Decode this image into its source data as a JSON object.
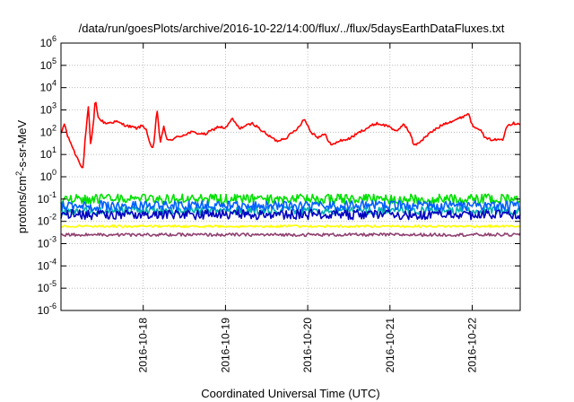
{
  "chart_data": {
    "type": "line",
    "title": "/data/run/goesPlots/archive/2016-10-22/14:00/flux/../flux/5daysEarthDataFluxes.txt",
    "xlabel": "Coordinated Universal Time (UTC)",
    "ylabel": {
      "main": "protons/cm",
      "sup": "2",
      "rest": "-s-sr-MeV"
    },
    "yscale": "log",
    "ylim_exp": [
      -6,
      6
    ],
    "y_tick_exponents": [
      -6,
      -5,
      -4,
      -3,
      -2,
      -1,
      0,
      1,
      2,
      3,
      4,
      5,
      6
    ],
    "xlim": [
      "2016-10-17 00:00",
      "2016-10-22 14:00"
    ],
    "x_ticks": [
      "2016-10-18",
      "2016-10-19",
      "2016-10-20",
      "2016-10-21",
      "2016-10-22"
    ],
    "grid": true,
    "legend": "none",
    "series": [
      {
        "color": "#ff0000",
        "noise": 0.06,
        "points": [
          [
            "2016-10-17 00:00",
            80
          ],
          [
            "2016-10-17 01:00",
            250
          ],
          [
            "2016-10-17 02:00",
            60
          ],
          [
            "2016-10-17 03:00",
            30
          ],
          [
            "2016-10-17 04:00",
            12
          ],
          [
            "2016-10-17 05:00",
            6
          ],
          [
            "2016-10-17 06:00",
            3
          ],
          [
            "2016-10-17 06:30",
            2.5
          ],
          [
            "2016-10-17 07:00",
            40
          ],
          [
            "2016-10-17 08:00",
            1500
          ],
          [
            "2016-10-17 08:40",
            20
          ],
          [
            "2016-10-17 09:30",
            300
          ],
          [
            "2016-10-17 10:00",
            3000
          ],
          [
            "2016-10-17 11:00",
            400
          ],
          [
            "2016-10-17 13:00",
            250
          ],
          [
            "2016-10-17 16:00",
            300
          ],
          [
            "2016-10-17 19:00",
            200
          ],
          [
            "2016-10-17 22:00",
            150
          ],
          [
            "2016-10-18 00:00",
            200
          ],
          [
            "2016-10-18 01:00",
            120
          ],
          [
            "2016-10-18 02:00",
            25
          ],
          [
            "2016-10-18 03:00",
            18
          ],
          [
            "2016-10-18 04:00",
            1200
          ],
          [
            "2016-10-18 05:00",
            30
          ],
          [
            "2016-10-18 06:00",
            200
          ],
          [
            "2016-10-18 07:00",
            40
          ],
          [
            "2016-10-18 10:00",
            60
          ],
          [
            "2016-10-18 14:00",
            100
          ],
          [
            "2016-10-18 18:00",
            80
          ],
          [
            "2016-10-18 22:00",
            180
          ],
          [
            "2016-10-19 00:00",
            150
          ],
          [
            "2016-10-19 02:00",
            400
          ],
          [
            "2016-10-19 04:00",
            150
          ],
          [
            "2016-10-19 08:00",
            250
          ],
          [
            "2016-10-19 12:00",
            80
          ],
          [
            "2016-10-19 15:00",
            40
          ],
          [
            "2016-10-19 18:00",
            60
          ],
          [
            "2016-10-19 21:00",
            150
          ],
          [
            "2016-10-19 23:00",
            400
          ],
          [
            "2016-10-20 01:00",
            100
          ],
          [
            "2016-10-20 03:00",
            60
          ],
          [
            "2016-10-20 05:00",
            80
          ],
          [
            "2016-10-20 07:00",
            25
          ],
          [
            "2016-10-20 09:00",
            40
          ],
          [
            "2016-10-20 12:00",
            50
          ],
          [
            "2016-10-20 16:00",
            120
          ],
          [
            "2016-10-20 20:00",
            250
          ],
          [
            "2016-10-21 00:00",
            180
          ],
          [
            "2016-10-21 02:00",
            100
          ],
          [
            "2016-10-21 04:00",
            250
          ],
          [
            "2016-10-21 06:00",
            80
          ],
          [
            "2016-10-21 07:00",
            25
          ],
          [
            "2016-10-21 09:00",
            40
          ],
          [
            "2016-10-21 12:00",
            100
          ],
          [
            "2016-10-21 16:00",
            250
          ],
          [
            "2016-10-21 20:00",
            400
          ],
          [
            "2016-10-21 23:00",
            700
          ],
          [
            "2016-10-22 00:00",
            200
          ],
          [
            "2016-10-22 02:00",
            150
          ],
          [
            "2016-10-22 04:00",
            50
          ],
          [
            "2016-10-22 07:00",
            45
          ],
          [
            "2016-10-22 09:00",
            50
          ],
          [
            "2016-10-22 10:00",
            200
          ],
          [
            "2016-10-22 12:00",
            250
          ],
          [
            "2016-10-22 14:00",
            250
          ]
        ]
      },
      {
        "color": "#00e000",
        "noise": 0.22,
        "points": [
          [
            "2016-10-17 00:00",
            0.1
          ],
          [
            "2016-10-22 14:00",
            0.1
          ]
        ]
      },
      {
        "color": "#00b0b0",
        "noise": 0.18,
        "points": [
          [
            "2016-10-17 00:00",
            0.03
          ],
          [
            "2016-10-22 14:00",
            0.03
          ]
        ]
      },
      {
        "color": "#0060ff",
        "noise": 0.22,
        "points": [
          [
            "2016-10-17 00:00",
            0.05
          ],
          [
            "2016-10-22 14:00",
            0.05
          ]
        ]
      },
      {
        "color": "#0000c0",
        "noise": 0.22,
        "points": [
          [
            "2016-10-17 00:00",
            0.02
          ],
          [
            "2016-10-22 14:00",
            0.02
          ]
        ]
      },
      {
        "color": "#ffff00",
        "noise": 0.05,
        "points": [
          [
            "2016-10-17 00:00",
            0.006
          ],
          [
            "2016-10-22 14:00",
            0.006
          ]
        ]
      },
      {
        "color": "#904070",
        "noise": 0.07,
        "points": [
          [
            "2016-10-17 00:00",
            0.0025
          ],
          [
            "2016-10-22 14:00",
            0.0025
          ]
        ]
      }
    ]
  }
}
